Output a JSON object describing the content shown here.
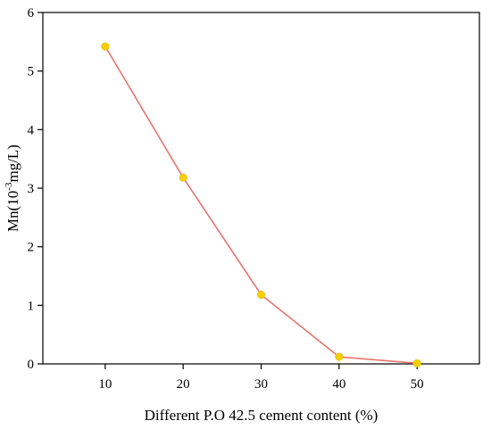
{
  "chart_data": {
    "type": "line",
    "title": "",
    "xlabel": "Different P.O 42.5 cement content (%)",
    "ylabel": {
      "base": "Mn(10",
      "sup": "-3",
      "rest": "mg/L)"
    },
    "x": [
      10,
      20,
      30,
      40,
      50
    ],
    "series": [
      {
        "values": [
          5.42,
          3.18,
          1.18,
          0.12,
          0.01
        ]
      }
    ],
    "xlim": [
      2,
      58
    ],
    "ylim": [
      0,
      6
    ],
    "xticks": [
      10,
      20,
      30,
      40,
      50
    ],
    "yticks": [
      0,
      1,
      2,
      3,
      4,
      5,
      6
    ],
    "grid": false,
    "legend": "none",
    "line_color": "#e8736b",
    "marker_color": "#f5d000"
  }
}
